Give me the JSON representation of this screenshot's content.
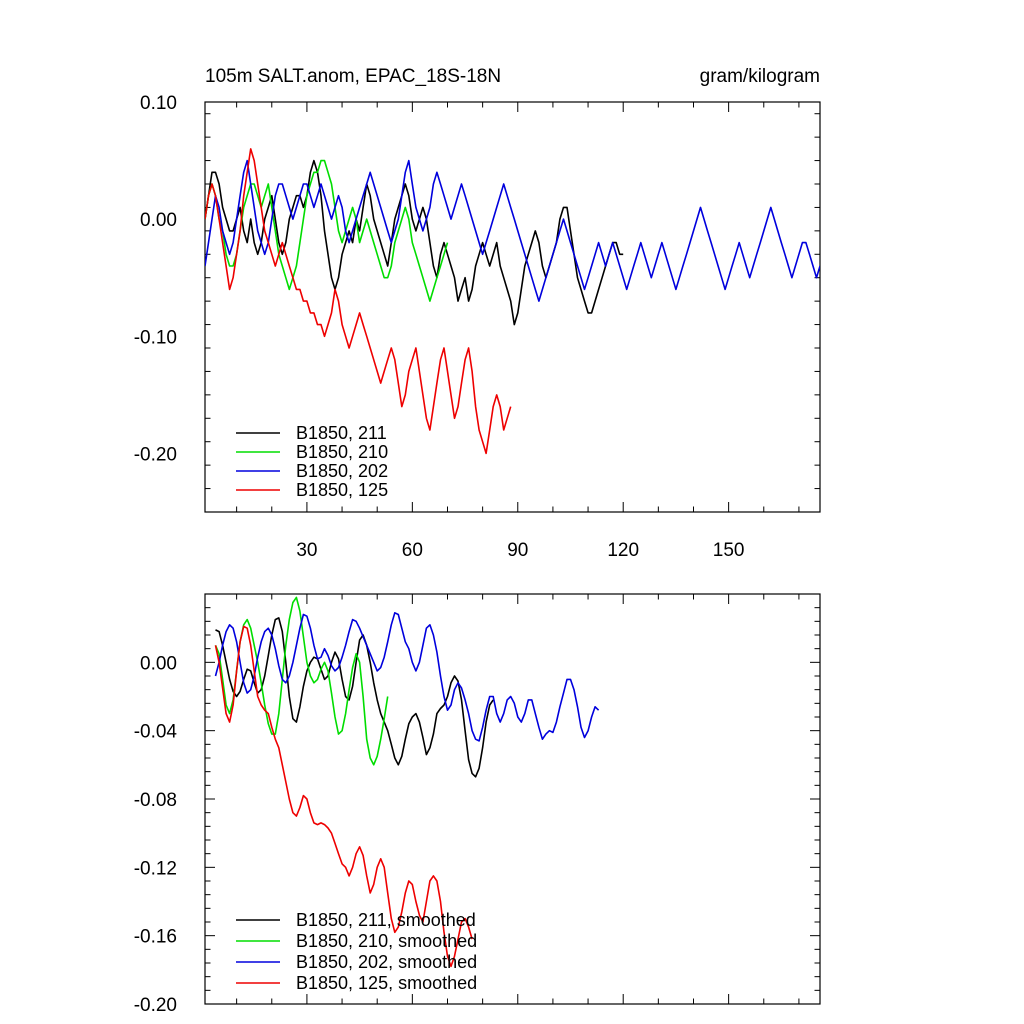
{
  "chart_data": [
    {
      "type": "line",
      "title_left": "105m SALT.anom, EPAC_18S-18N",
      "title_right": "gram/kilogram",
      "xlabel": "",
      "ylabel": "",
      "xlim": [
        1,
        176
      ],
      "ylim": [
        -0.25,
        0.1
      ],
      "xticks": [
        30,
        60,
        90,
        120,
        150
      ],
      "xtick_labels": [
        "30",
        "60",
        "90",
        "120",
        "150"
      ],
      "yticks": [
        0.1,
        0.0,
        -0.1,
        -0.2
      ],
      "ytick_labels": [
        "0.10",
        "0.00",
        "-0.10",
        "-0.20"
      ],
      "legend_position": "bottom-left",
      "series": [
        {
          "name": "B1850, 211",
          "color": "#000000",
          "x_start": 1,
          "values": [
            0.0,
            0.02,
            0.04,
            0.04,
            0.03,
            0.01,
            0.0,
            -0.01,
            -0.01,
            0.0,
            0.01,
            -0.01,
            -0.02,
            0.0,
            -0.02,
            -0.03,
            -0.02,
            0.0,
            0.01,
            0.02,
            0.0,
            -0.02,
            -0.03,
            -0.02,
            0.0,
            0.01,
            0.02,
            0.02,
            0.01,
            0.02,
            0.04,
            0.05,
            0.04,
            0.02,
            -0.01,
            -0.03,
            -0.05,
            -0.06,
            -0.05,
            -0.03,
            -0.02,
            -0.01,
            -0.02,
            0.0,
            -0.01,
            0.01,
            0.03,
            0.02,
            0.0,
            -0.01,
            -0.02,
            -0.03,
            -0.04,
            -0.02,
            0.0,
            0.01,
            0.02,
            0.03,
            0.02,
            0.0,
            -0.01,
            0.0,
            0.01,
            0.0,
            -0.02,
            -0.04,
            -0.05,
            -0.03,
            -0.02,
            -0.03,
            -0.04,
            -0.05,
            -0.07,
            -0.06,
            -0.05,
            -0.07,
            -0.06,
            -0.04,
            -0.03,
            -0.02,
            -0.03,
            -0.04,
            -0.03,
            -0.02,
            -0.04,
            -0.05,
            -0.06,
            -0.07,
            -0.09,
            -0.08,
            -0.06,
            -0.04,
            -0.03,
            -0.02,
            -0.01,
            -0.02,
            -0.04,
            -0.05,
            -0.04,
            -0.03,
            -0.02,
            0.0,
            0.01,
            0.01,
            -0.01,
            -0.03,
            -0.05,
            -0.06,
            -0.07,
            -0.08,
            -0.08,
            -0.07,
            -0.06,
            -0.05,
            -0.04,
            -0.03,
            -0.02,
            -0.02,
            -0.03,
            -0.03
          ]
        },
        {
          "name": "B1850, 210",
          "color": "#00dd00",
          "x_start": 1,
          "values": [
            0.0,
            0.02,
            0.03,
            0.02,
            0.0,
            -0.01,
            -0.03,
            -0.04,
            -0.04,
            -0.03,
            -0.01,
            0.01,
            0.02,
            0.03,
            0.03,
            0.02,
            0.01,
            0.02,
            0.03,
            0.01,
            -0.01,
            -0.03,
            -0.04,
            -0.05,
            -0.06,
            -0.05,
            -0.04,
            -0.02,
            0.0,
            0.02,
            0.03,
            0.04,
            0.04,
            0.05,
            0.05,
            0.04,
            0.03,
            0.01,
            -0.01,
            -0.02,
            -0.01,
            0.0,
            0.01,
            0.0,
            -0.02,
            -0.01,
            0.0,
            -0.01,
            -0.02,
            -0.03,
            -0.04,
            -0.05,
            -0.05,
            -0.04,
            -0.02,
            -0.01,
            0.0,
            0.01,
            0.0,
            -0.02,
            -0.03,
            -0.04,
            -0.05,
            -0.06,
            -0.07,
            -0.06,
            -0.05,
            -0.04,
            -0.03,
            -0.02
          ]
        },
        {
          "name": "B1850, 202",
          "color": "#0000dd",
          "x_start": 1,
          "values": [
            -0.04,
            -0.02,
            0.0,
            0.02,
            0.01,
            -0.01,
            -0.02,
            -0.03,
            -0.02,
            0.0,
            0.02,
            0.04,
            0.05,
            0.03,
            0.01,
            -0.01,
            -0.02,
            -0.03,
            -0.02,
            0.0,
            0.02,
            0.03,
            0.03,
            0.02,
            0.01,
            0.0,
            0.01,
            0.02,
            0.03,
            0.03,
            0.02,
            0.01,
            0.02,
            0.03,
            0.02,
            0.01,
            0.0,
            0.01,
            0.02,
            0.01,
            -0.01,
            -0.02,
            -0.01,
            0.0,
            0.01,
            0.02,
            0.03,
            0.04,
            0.03,
            0.02,
            0.01,
            0.0,
            -0.01,
            -0.02,
            -0.01,
            0.0,
            0.02,
            0.04,
            0.05,
            0.03,
            0.01,
            0.0,
            -0.01,
            0.0,
            0.01,
            0.03,
            0.04,
            0.03,
            0.02,
            0.01,
            0.0,
            0.01,
            0.02,
            0.03,
            0.02,
            0.01,
            0.0,
            -0.01,
            -0.02,
            -0.03,
            -0.02,
            -0.01,
            0.0,
            0.01,
            0.02,
            0.03,
            0.02,
            0.01,
            0.0,
            -0.01,
            -0.02,
            -0.03,
            -0.04,
            -0.05,
            -0.06,
            -0.07,
            -0.06,
            -0.05,
            -0.04,
            -0.03,
            -0.02,
            -0.01,
            0.0,
            -0.01,
            -0.02,
            -0.03,
            -0.04,
            -0.05,
            -0.06,
            -0.05,
            -0.04,
            -0.03,
            -0.02,
            -0.03,
            -0.04,
            -0.03,
            -0.02,
            -0.03,
            -0.04,
            -0.05,
            -0.06,
            -0.05,
            -0.04,
            -0.03,
            -0.02,
            -0.03,
            -0.04,
            -0.05,
            -0.04,
            -0.03,
            -0.02,
            -0.03,
            -0.04,
            -0.05,
            -0.06,
            -0.05,
            -0.04,
            -0.03,
            -0.02,
            -0.01,
            0.0,
            0.01,
            0.0,
            -0.01,
            -0.02,
            -0.03,
            -0.04,
            -0.05,
            -0.06,
            -0.05,
            -0.04,
            -0.03,
            -0.02,
            -0.03,
            -0.04,
            -0.05,
            -0.04,
            -0.03,
            -0.02,
            -0.01,
            0.0,
            0.01,
            0.0,
            -0.01,
            -0.02,
            -0.03,
            -0.04,
            -0.05,
            -0.04,
            -0.03,
            -0.02,
            -0.02,
            -0.03,
            -0.04,
            -0.05,
            -0.04
          ]
        },
        {
          "name": "B1850, 125",
          "color": "#ee0000",
          "x_start": 1,
          "values": [
            0.0,
            0.02,
            0.03,
            0.02,
            0.0,
            -0.02,
            -0.04,
            -0.06,
            -0.05,
            -0.03,
            -0.01,
            0.02,
            0.04,
            0.06,
            0.05,
            0.03,
            0.01,
            -0.01,
            -0.02,
            -0.03,
            -0.04,
            -0.03,
            -0.02,
            -0.03,
            -0.04,
            -0.05,
            -0.06,
            -0.06,
            -0.07,
            -0.07,
            -0.08,
            -0.08,
            -0.09,
            -0.09,
            -0.1,
            -0.09,
            -0.08,
            -0.06,
            -0.07,
            -0.09,
            -0.1,
            -0.11,
            -0.1,
            -0.09,
            -0.08,
            -0.09,
            -0.1,
            -0.11,
            -0.12,
            -0.13,
            -0.14,
            -0.13,
            -0.12,
            -0.11,
            -0.12,
            -0.14,
            -0.16,
            -0.15,
            -0.13,
            -0.12,
            -0.11,
            -0.13,
            -0.15,
            -0.17,
            -0.18,
            -0.16,
            -0.14,
            -0.12,
            -0.11,
            -0.13,
            -0.15,
            -0.17,
            -0.16,
            -0.14,
            -0.12,
            -0.11,
            -0.13,
            -0.16,
            -0.18,
            -0.19,
            -0.2,
            -0.18,
            -0.16,
            -0.15,
            -0.16,
            -0.18,
            -0.17,
            -0.16
          ]
        }
      ]
    },
    {
      "type": "line",
      "title_left": "",
      "title_right": "",
      "xlabel": "",
      "ylabel": "",
      "xlim": [
        1,
        176
      ],
      "ylim": [
        -0.2,
        0.04
      ],
      "xticks": [
        30,
        60,
        90,
        120,
        150
      ],
      "xtick_labels": [],
      "yticks": [
        0.0,
        -0.04,
        -0.08,
        -0.12,
        -0.16,
        -0.2
      ],
      "ytick_labels": [
        "0.00",
        "-0.04",
        "-0.08",
        "-0.12",
        "-0.16",
        "-0.20"
      ],
      "legend_position": "bottom-left",
      "series": [
        {
          "name": "B1850, 211, smoothed",
          "color": "#000000",
          "x_start": 4,
          "values": [
            0.019,
            0.018,
            0.01,
            0.0,
            -0.01,
            -0.017,
            -0.02,
            -0.017,
            -0.01,
            -0.004,
            -0.005,
            -0.012,
            -0.018,
            -0.016,
            -0.008,
            0.004,
            0.016,
            0.025,
            0.026,
            0.018,
            0.0,
            -0.02,
            -0.033,
            -0.035,
            -0.026,
            -0.014,
            -0.005,
            0.0,
            0.003,
            0.002,
            -0.004,
            -0.01,
            -0.008,
            0.0,
            0.006,
            0.002,
            -0.01,
            -0.02,
            -0.022,
            -0.014,
            0.0,
            0.013,
            0.016,
            0.01,
            0.0,
            -0.012,
            -0.022,
            -0.03,
            -0.035,
            -0.04,
            -0.048,
            -0.056,
            -0.06,
            -0.055,
            -0.045,
            -0.036,
            -0.032,
            -0.03,
            -0.035,
            -0.044,
            -0.054,
            -0.05,
            -0.042,
            -0.03,
            -0.027,
            -0.025,
            -0.02,
            -0.012,
            -0.008,
            -0.011,
            -0.022,
            -0.04,
            -0.057,
            -0.065,
            -0.067,
            -0.062,
            -0.05,
            -0.035,
            -0.025,
            -0.022
          ]
        },
        {
          "name": "B1850, 210, smoothed",
          "color": "#00dd00",
          "x_start": 4,
          "values": [
            0.01,
            0.005,
            -0.01,
            -0.025,
            -0.03,
            -0.022,
            -0.005,
            0.012,
            0.022,
            0.025,
            0.02,
            0.01,
            0.0,
            -0.012,
            -0.025,
            -0.036,
            -0.042,
            -0.042,
            -0.03,
            -0.01,
            0.01,
            0.025,
            0.035,
            0.038,
            0.03,
            0.015,
            0.0,
            -0.008,
            -0.012,
            -0.01,
            -0.004,
            0.0,
            -0.005,
            -0.018,
            -0.032,
            -0.042,
            -0.04,
            -0.03,
            -0.016,
            -0.003,
            0.005,
            0.0,
            -0.02,
            -0.045,
            -0.056,
            -0.06,
            -0.055,
            -0.045,
            -0.033,
            -0.02
          ]
        },
        {
          "name": "B1850, 202, smoothed",
          "color": "#0000dd",
          "x_start": 4,
          "values": [
            -0.008,
            0.0,
            0.01,
            0.018,
            0.022,
            0.02,
            0.012,
            0.0,
            -0.012,
            -0.018,
            -0.016,
            -0.008,
            0.003,
            0.012,
            0.018,
            0.02,
            0.016,
            0.008,
            -0.002,
            -0.01,
            -0.012,
            -0.008,
            0.0,
            0.01,
            0.02,
            0.028,
            0.027,
            0.02,
            0.01,
            0.002,
            0.003,
            0.008,
            0.004,
            -0.002,
            -0.005,
            -0.003,
            0.003,
            0.01,
            0.018,
            0.025,
            0.024,
            0.02,
            0.015,
            0.01,
            0.005,
            0.0,
            -0.005,
            -0.003,
            0.003,
            0.012,
            0.022,
            0.029,
            0.028,
            0.02,
            0.012,
            0.008,
            0.0,
            -0.005,
            0.0,
            0.01,
            0.02,
            0.022,
            0.016,
            0.006,
            -0.008,
            -0.02,
            -0.028,
            -0.025,
            -0.016,
            -0.012,
            -0.015,
            -0.022,
            -0.03,
            -0.04,
            -0.045,
            -0.046,
            -0.038,
            -0.028,
            -0.02,
            -0.02,
            -0.03,
            -0.035,
            -0.03,
            -0.022,
            -0.02,
            -0.024,
            -0.032,
            -0.035,
            -0.03,
            -0.022,
            -0.022,
            -0.03,
            -0.038,
            -0.045,
            -0.042,
            -0.04,
            -0.041,
            -0.035,
            -0.026,
            -0.018,
            -0.01,
            -0.01,
            -0.016,
            -0.026,
            -0.038,
            -0.044,
            -0.04,
            -0.032,
            -0.026,
            -0.028
          ]
        },
        {
          "name": "B1850, 125, smoothed",
          "color": "#ee0000",
          "x_start": 4,
          "values": [
            0.01,
            0.0,
            -0.015,
            -0.03,
            -0.035,
            -0.025,
            -0.005,
            0.012,
            0.021,
            0.02,
            0.01,
            -0.005,
            -0.02,
            -0.025,
            -0.028,
            -0.03,
            -0.038,
            -0.045,
            -0.05,
            -0.06,
            -0.07,
            -0.08,
            -0.088,
            -0.09,
            -0.085,
            -0.078,
            -0.08,
            -0.088,
            -0.094,
            -0.095,
            -0.094,
            -0.095,
            -0.097,
            -0.1,
            -0.106,
            -0.112,
            -0.118,
            -0.12,
            -0.125,
            -0.12,
            -0.112,
            -0.108,
            -0.113,
            -0.125,
            -0.135,
            -0.13,
            -0.12,
            -0.115,
            -0.12,
            -0.135,
            -0.15,
            -0.158,
            -0.155,
            -0.146,
            -0.135,
            -0.128,
            -0.13,
            -0.14,
            -0.148,
            -0.152,
            -0.14,
            -0.128,
            -0.125,
            -0.128,
            -0.14,
            -0.158,
            -0.172,
            -0.178,
            -0.172,
            -0.162,
            -0.152,
            -0.15,
            -0.155,
            -0.162
          ]
        }
      ]
    }
  ]
}
